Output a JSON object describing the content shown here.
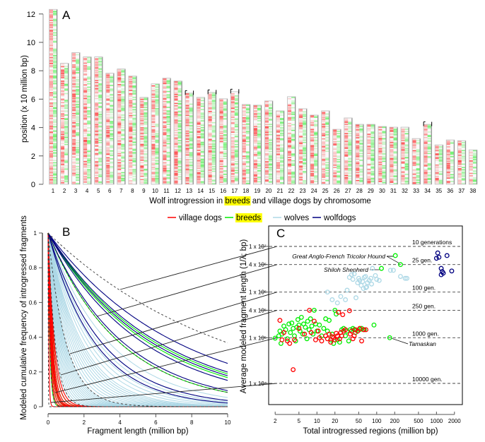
{
  "figure": {
    "legend": [
      {
        "label": "village dogs",
        "color": "#ff0000",
        "highlight": false
      },
      {
        "label": "breeds",
        "color": "#00ee00",
        "highlight": true
      },
      {
        "label": "wolves",
        "color": "#add8e6",
        "highlight": false
      },
      {
        "label": "wolfdogs",
        "color": "#000080",
        "highlight": false
      }
    ],
    "highlight_color": "#ffff00"
  },
  "chart_data": [
    {
      "panel": "A",
      "type": "heatmap",
      "title": "",
      "xlabel_parts": [
        "Wolf introgression in ",
        "breeds",
        " and village dogs by chromosome"
      ],
      "ylabel": "position (x 10 million bp)",
      "ylim": [
        0,
        12.3
      ],
      "yticks": [
        0,
        2,
        4,
        6,
        8,
        10,
        12
      ],
      "categories": [
        "1",
        "2",
        "3",
        "4",
        "5",
        "6",
        "7",
        "8",
        "9",
        "10",
        "11",
        "12",
        "13",
        "14",
        "15",
        "16",
        "17",
        "18",
        "19",
        "20",
        "21",
        "22",
        "23",
        "24",
        "25",
        "26",
        "27",
        "28",
        "29",
        "30",
        "31",
        "32",
        "33",
        "34",
        "35",
        "36",
        "37",
        "38"
      ],
      "values": [
        12.3,
        8.5,
        9.25,
        8.95,
        8.95,
        7.8,
        8.1,
        7.6,
        6.1,
        7.05,
        7.45,
        7.25,
        6.4,
        6.1,
        6.45,
        6.0,
        6.5,
        5.6,
        5.55,
        5.85,
        5.15,
        6.15,
        5.3,
        4.85,
        5.15,
        3.85,
        4.65,
        4.2,
        4.2,
        4.05,
        4.0,
        4.0,
        3.2,
        4.2,
        2.75,
        3.1,
        3.05,
        2.4
      ],
      "series": [
        {
          "name": "village dogs",
          "color": "#ff0000",
          "side": "left"
        },
        {
          "name": "breeds",
          "color": "#00ee00",
          "side": "right"
        }
      ],
      "bracketed_chromosomes": [
        "13",
        "15",
        "17",
        "34"
      ]
    },
    {
      "panel": "B",
      "type": "line",
      "xlabel": "Fragment length (million bp)",
      "ylabel": "Modeled cumulative frequency of introgressed fragments",
      "xlim": [
        0,
        10
      ],
      "ylim": [
        0,
        1
      ],
      "xticks": [
        0,
        2,
        4,
        6,
        8,
        10
      ],
      "yticks": [
        0,
        0.2,
        0.4,
        0.6,
        0.8,
        1
      ],
      "model": "exponential decay y = exp(-x / mean_length)",
      "series": [
        {
          "name": "wolfdogs",
          "color": "#000080",
          "mean_lengths_mbp": [
            7.2,
            6.2,
            5.8,
            5.3,
            4.2,
            3.0,
            2.6
          ]
        },
        {
          "name": "breeds",
          "color": "#00ee00",
          "mean_lengths_mbp": [
            6.0,
            5.6,
            4.0,
            0.3,
            0.25,
            0.2,
            0.18,
            0.15,
            0.12,
            0.1
          ]
        },
        {
          "name": "wolves",
          "color": "#add8e6",
          "mean_lengths_mbp": [
            3.4,
            3.0,
            2.8,
            2.5,
            2.3,
            2.1,
            1.9,
            1.8,
            1.7,
            1.6,
            1.5,
            1.4,
            1.3,
            1.2,
            1.1,
            1.0,
            0.95,
            0.9,
            0.85,
            0.8,
            0.75,
            0.7,
            0.65,
            0.6,
            0.55,
            0.5,
            0.45,
            0.4
          ]
        },
        {
          "name": "village dogs",
          "color": "#ff0000",
          "mean_lengths_mbp": [
            0.35,
            0.3,
            0.25,
            0.22,
            0.2,
            0.18,
            0.15,
            0.12,
            0.04
          ]
        }
      ],
      "reference_generations": [
        {
          "label": "10 generations",
          "mean_length_mbp": 10
        },
        {
          "label": "25 gen.",
          "mean_length_mbp": 4
        },
        {
          "label": "100 gen.",
          "mean_length_mbp": 1
        },
        {
          "label": "250 gen.",
          "mean_length_mbp": 0.4
        },
        {
          "label": "1000 gen.",
          "mean_length_mbp": 0.1
        },
        {
          "label": "10000 gen.",
          "mean_length_mbp": 0.01
        }
      ]
    },
    {
      "panel": "C",
      "type": "scatter",
      "xlabel": "Total introgressed regions (million bp)",
      "ylabel": "Average modeled fragment length (1/λ; bp)",
      "xscale": "log",
      "yscale": "log",
      "xlim": [
        1.6,
        2500
      ],
      "ylim": [
        4000,
        30000000
      ],
      "xticks": [
        2,
        5,
        10,
        20,
        50,
        100,
        200,
        500,
        1000,
        2000
      ],
      "yticks": [
        {
          "value": 10000000,
          "label": "1 x 10⁷"
        },
        {
          "value": 4000000,
          "label": "4 x 10⁶"
        },
        {
          "value": 1000000,
          "label": "1 x 10⁶"
        },
        {
          "value": 400000,
          "label": "4 x 10⁵"
        },
        {
          "value": 100000,
          "label": "1 x 10⁵"
        },
        {
          "value": 10000,
          "label": "1 x 10⁴"
        }
      ],
      "hlines": [
        {
          "value": 10000000,
          "label": "10 generations"
        },
        {
          "value": 4000000,
          "label": "25 gen."
        },
        {
          "value": 1000000,
          "label": "100 gen."
        },
        {
          "value": 400000,
          "label": "250 gen."
        },
        {
          "value": 100000,
          "label": "1000 gen."
        },
        {
          "value": 10000,
          "label": "10000 gen."
        }
      ],
      "annotations": [
        {
          "text": "Great Anglo-French Tricolor Hound",
          "x": 205,
          "y": 6300000
        },
        {
          "text": "Shiloh Shepherd",
          "x": 120,
          "y": 3300000
        },
        {
          "text": "Tamaskan",
          "x": 165,
          "y": 100000
        }
      ],
      "series": [
        {
          "name": "wolfdogs",
          "color": "#000080",
          "points": [
            [
              1050,
              7200000
            ],
            [
              1000,
              5500000
            ],
            [
              1100,
              5800000
            ],
            [
              1500,
              6300000
            ],
            [
              1200,
              3300000
            ],
            [
              1250,
              2800000
            ],
            [
              1300,
              2600000
            ],
            [
              1800,
              2900000
            ],
            [
              1200,
              2400000
            ]
          ]
        },
        {
          "name": "wolves",
          "color": "#add8e6",
          "points": [
            [
              15,
              1000000
            ],
            [
              18,
              680000
            ],
            [
              22,
              580000
            ],
            [
              25,
              800000
            ],
            [
              30,
              680000
            ],
            [
              32,
              1100000
            ],
            [
              35,
              2100000
            ],
            [
              38,
              2400000
            ],
            [
              40,
              1900000
            ],
            [
              42,
              2500000
            ],
            [
              45,
              750000
            ],
            [
              48,
              1600000
            ],
            [
              50,
              2000000
            ],
            [
              52,
              1800000
            ],
            [
              55,
              1400000
            ],
            [
              58,
              1700000
            ],
            [
              60,
              1200000
            ],
            [
              62,
              2100000
            ],
            [
              65,
              2200000
            ],
            [
              66,
              1250000
            ],
            [
              68,
              1300000
            ],
            [
              70,
              1600000
            ],
            [
              75,
              1800000
            ],
            [
              80,
              2000000
            ],
            [
              82,
              1500000
            ],
            [
              85,
              3300000
            ],
            [
              95,
              2300000
            ],
            [
              100,
              1900000
            ],
            [
              110,
              1800000
            ],
            [
              170,
              3000000
            ],
            [
              190,
              3000000
            ],
            [
              250,
              2200000
            ],
            [
              300,
              2000000
            ],
            [
              320,
              2000000
            ]
          ]
        },
        {
          "name": "breeds",
          "color": "#00ee00",
          "points": [
            [
              2,
              98000
            ],
            [
              2.3,
              110000
            ],
            [
              2.4,
              140000
            ],
            [
              2.5,
              75000
            ],
            [
              2.6,
              120000
            ],
            [
              2.8,
              180000
            ],
            [
              3,
              150000
            ],
            [
              3.2,
              95000
            ],
            [
              3.4,
              200000
            ],
            [
              3.6,
              130000
            ],
            [
              3.8,
              210000
            ],
            [
              4,
              160000
            ],
            [
              4.2,
              110000
            ],
            [
              4.4,
              85000
            ],
            [
              4.6,
              170000
            ],
            [
              4.8,
              250000
            ],
            [
              5,
              190000
            ],
            [
              5.2,
              140000
            ],
            [
              5.5,
              280000
            ],
            [
              5.8,
              120000
            ],
            [
              6,
              200000
            ],
            [
              6.4,
              170000
            ],
            [
              6.8,
              95000
            ],
            [
              7,
              230000
            ],
            [
              7.4,
              150000
            ],
            [
              7.8,
              260000
            ],
            [
              8.2,
              180000
            ],
            [
              8.6,
              120000
            ],
            [
              9,
              400000
            ],
            [
              9.5,
              200000
            ],
            [
              10,
              140000
            ],
            [
              11,
              190000
            ],
            [
              12,
              110000
            ],
            [
              13,
              160000
            ],
            [
              14,
              260000
            ],
            [
              15,
              140000
            ],
            [
              16,
              240000
            ],
            [
              17,
              90000
            ],
            [
              18,
              120000
            ],
            [
              19,
              75000
            ],
            [
              20,
              400000
            ],
            [
              21,
              330000
            ],
            [
              22,
              90000
            ],
            [
              24,
              80000
            ],
            [
              26,
              150000
            ],
            [
              28,
              160000
            ],
            [
              30,
              110000
            ],
            [
              32,
              140000
            ],
            [
              34,
              85000
            ],
            [
              36,
              150000
            ],
            [
              40,
              160000
            ],
            [
              42,
              150000
            ],
            [
              44,
              130000
            ],
            [
              48,
              140000
            ],
            [
              52,
              150000
            ],
            [
              56,
              160000
            ],
            [
              62,
              150000
            ],
            [
              90,
              190000
            ],
            [
              205,
              6300000
            ],
            [
              250,
              4000000
            ],
            [
              120,
              3300000
            ],
            [
              165,
              100000
            ]
          ]
        },
        {
          "name": "village dogs",
          "color": "#ff0000",
          "points": [
            [
              2.4,
              240000
            ],
            [
              2.6,
              90000
            ],
            [
              2.8,
              130000
            ],
            [
              3.2,
              85000
            ],
            [
              3.5,
              75000
            ],
            [
              4,
              20000
            ],
            [
              4.2,
              90000
            ],
            [
              5,
              160000
            ],
            [
              6.2,
              120000
            ],
            [
              7.5,
              400000
            ],
            [
              8,
              130000
            ],
            [
              9,
              230000
            ],
            [
              9.5,
              90000
            ],
            [
              10.5,
              140000
            ],
            [
              11,
              100000
            ],
            [
              12,
              85000
            ],
            [
              14,
              110000
            ],
            [
              15,
              95000
            ],
            [
              16,
              120000
            ],
            [
              17,
              80000
            ],
            [
              18,
              105000
            ],
            [
              19,
              100000
            ],
            [
              20,
              90000
            ],
            [
              21,
              125000
            ],
            [
              22,
              110000
            ],
            [
              23,
              360000
            ],
            [
              24,
              95000
            ],
            [
              25,
              130000
            ],
            [
              26,
              110000
            ],
            [
              27,
              320000
            ],
            [
              28,
              140000
            ],
            [
              30,
              150000
            ],
            [
              35,
              390000
            ],
            [
              36,
              120000
            ],
            [
              38,
              140000
            ],
            [
              40,
              95000
            ],
            [
              42,
              110000
            ],
            [
              44,
              150000
            ],
            [
              48,
              140000
            ],
            [
              52,
              160000
            ],
            [
              56,
              85000
            ],
            [
              60,
              150000
            ],
            [
              66,
              150000
            ]
          ]
        }
      ]
    }
  ]
}
